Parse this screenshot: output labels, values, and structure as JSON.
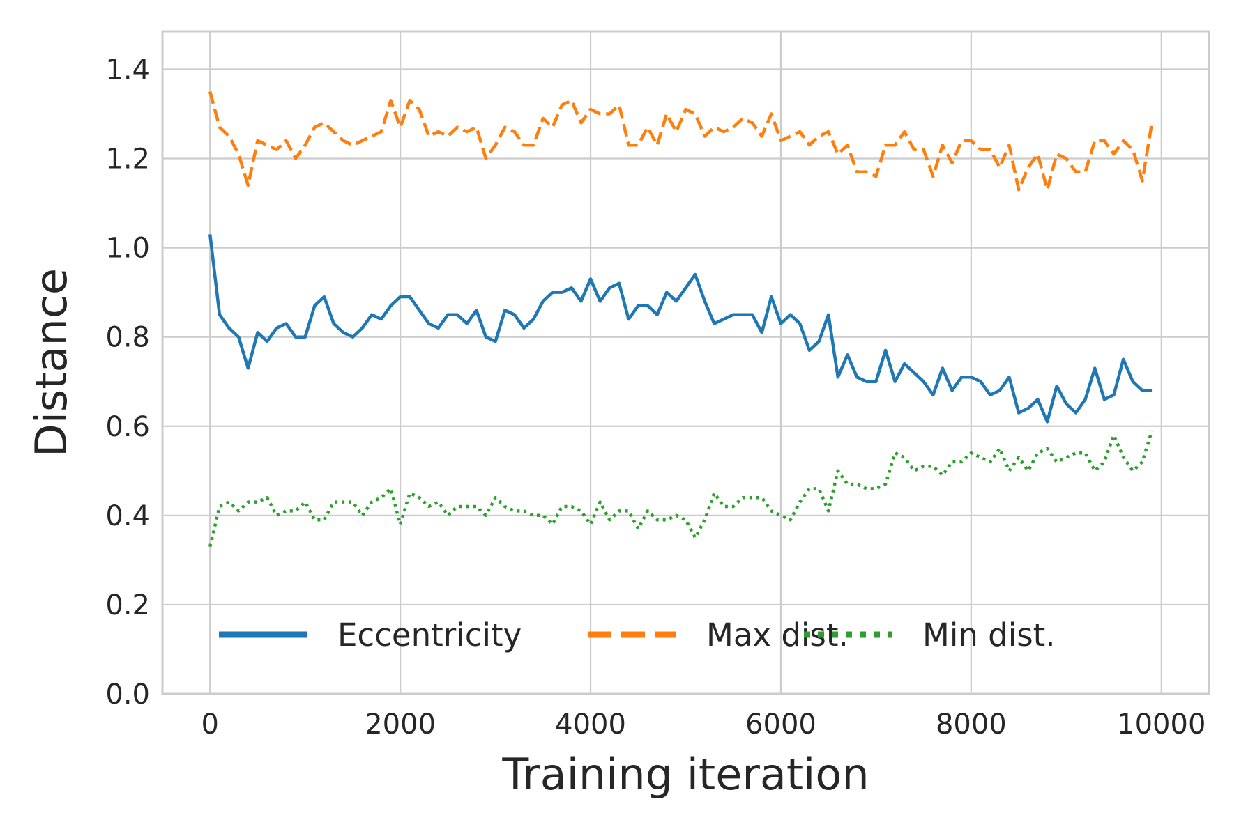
{
  "chart_data": {
    "type": "line",
    "xlabel": "Training iteration",
    "ylabel": "Distance",
    "xlim": [
      -500,
      10500
    ],
    "ylim": [
      0.0,
      1.485
    ],
    "xticks": [
      0,
      2000,
      4000,
      6000,
      8000,
      10000
    ],
    "xtick_labels": [
      "0",
      "2000",
      "4000",
      "6000",
      "8000",
      "10000"
    ],
    "yticks": [
      0.0,
      0.2,
      0.4,
      0.6,
      0.8,
      1.0,
      1.2,
      1.4
    ],
    "ytick_labels": [
      "0.0",
      "0.2",
      "0.4",
      "0.6",
      "0.8",
      "1.0",
      "1.2",
      "1.4"
    ],
    "grid": true,
    "legend_position": "bottom",
    "x": [
      0,
      100,
      200,
      300,
      400,
      500,
      600,
      700,
      800,
      900,
      1000,
      1100,
      1200,
      1300,
      1400,
      1500,
      1600,
      1700,
      1800,
      1900,
      2000,
      2100,
      2200,
      2300,
      2400,
      2500,
      2600,
      2700,
      2800,
      2900,
      3000,
      3100,
      3200,
      3300,
      3400,
      3500,
      3600,
      3700,
      3800,
      3900,
      4000,
      4100,
      4200,
      4300,
      4400,
      4500,
      4600,
      4700,
      4800,
      4900,
      5000,
      5100,
      5200,
      5300,
      5400,
      5500,
      5600,
      5700,
      5800,
      5900,
      6000,
      6100,
      6200,
      6300,
      6400,
      6500,
      6600,
      6700,
      6800,
      6900,
      7000,
      7100,
      7200,
      7300,
      7400,
      7500,
      7600,
      7700,
      7800,
      7900,
      8000,
      8100,
      8200,
      8300,
      8400,
      8500,
      8600,
      8700,
      8800,
      8900,
      9000,
      9100,
      9200,
      9300,
      9400,
      9500,
      9600,
      9700,
      9800,
      9900
    ],
    "series": [
      {
        "name": "Eccentricity",
        "color": "#1f77b4",
        "style": "solid",
        "values": [
          1.03,
          0.85,
          0.82,
          0.8,
          0.73,
          0.81,
          0.79,
          0.82,
          0.83,
          0.8,
          0.8,
          0.87,
          0.89,
          0.83,
          0.81,
          0.8,
          0.82,
          0.85,
          0.84,
          0.87,
          0.89,
          0.89,
          0.86,
          0.83,
          0.82,
          0.85,
          0.85,
          0.83,
          0.86,
          0.8,
          0.79,
          0.86,
          0.85,
          0.82,
          0.84,
          0.88,
          0.9,
          0.9,
          0.91,
          0.88,
          0.93,
          0.88,
          0.91,
          0.92,
          0.84,
          0.87,
          0.87,
          0.85,
          0.9,
          0.88,
          0.91,
          0.94,
          0.88,
          0.83,
          0.84,
          0.85,
          0.85,
          0.85,
          0.81,
          0.89,
          0.83,
          0.85,
          0.83,
          0.77,
          0.79,
          0.85,
          0.71,
          0.76,
          0.71,
          0.7,
          0.7,
          0.77,
          0.7,
          0.74,
          0.72,
          0.7,
          0.67,
          0.73,
          0.68,
          0.71,
          0.71,
          0.7,
          0.67,
          0.68,
          0.71,
          0.63,
          0.64,
          0.66,
          0.61,
          0.69,
          0.65,
          0.63,
          0.66,
          0.73,
          0.66,
          0.67,
          0.75,
          0.7,
          0.68,
          0.68
        ]
      },
      {
        "name": "Max dist.",
        "color": "#ff7f0e",
        "style": "dashed",
        "values": [
          1.35,
          1.27,
          1.25,
          1.21,
          1.14,
          1.24,
          1.23,
          1.22,
          1.24,
          1.2,
          1.23,
          1.27,
          1.28,
          1.26,
          1.24,
          1.23,
          1.24,
          1.25,
          1.26,
          1.33,
          1.27,
          1.33,
          1.31,
          1.25,
          1.26,
          1.25,
          1.27,
          1.26,
          1.27,
          1.2,
          1.23,
          1.27,
          1.26,
          1.23,
          1.23,
          1.29,
          1.27,
          1.32,
          1.33,
          1.28,
          1.31,
          1.3,
          1.3,
          1.32,
          1.23,
          1.23,
          1.27,
          1.23,
          1.3,
          1.26,
          1.31,
          1.3,
          1.25,
          1.27,
          1.26,
          1.27,
          1.29,
          1.28,
          1.25,
          1.3,
          1.24,
          1.25,
          1.26,
          1.23,
          1.25,
          1.26,
          1.21,
          1.23,
          1.17,
          1.17,
          1.16,
          1.23,
          1.23,
          1.26,
          1.22,
          1.22,
          1.16,
          1.23,
          1.19,
          1.24,
          1.24,
          1.22,
          1.22,
          1.18,
          1.23,
          1.13,
          1.18,
          1.21,
          1.13,
          1.21,
          1.2,
          1.17,
          1.17,
          1.24,
          1.24,
          1.21,
          1.24,
          1.22,
          1.15,
          1.28
        ]
      },
      {
        "name": "Min dist.",
        "color": "#2ca02c",
        "style": "dotted",
        "values": [
          0.33,
          0.42,
          0.43,
          0.41,
          0.43,
          0.43,
          0.44,
          0.4,
          0.41,
          0.41,
          0.43,
          0.39,
          0.39,
          0.43,
          0.43,
          0.43,
          0.4,
          0.43,
          0.44,
          0.46,
          0.38,
          0.45,
          0.44,
          0.42,
          0.43,
          0.4,
          0.42,
          0.42,
          0.42,
          0.4,
          0.44,
          0.42,
          0.41,
          0.41,
          0.4,
          0.4,
          0.38,
          0.42,
          0.42,
          0.41,
          0.38,
          0.43,
          0.39,
          0.41,
          0.41,
          0.37,
          0.41,
          0.39,
          0.39,
          0.4,
          0.39,
          0.35,
          0.39,
          0.45,
          0.42,
          0.42,
          0.44,
          0.44,
          0.44,
          0.41,
          0.4,
          0.39,
          0.43,
          0.46,
          0.46,
          0.41,
          0.5,
          0.47,
          0.47,
          0.46,
          0.46,
          0.47,
          0.54,
          0.53,
          0.5,
          0.51,
          0.51,
          0.49,
          0.52,
          0.52,
          0.54,
          0.53,
          0.52,
          0.55,
          0.5,
          0.53,
          0.5,
          0.54,
          0.55,
          0.52,
          0.53,
          0.54,
          0.54,
          0.5,
          0.52,
          0.58,
          0.53,
          0.5,
          0.52,
          0.59
        ]
      }
    ]
  }
}
